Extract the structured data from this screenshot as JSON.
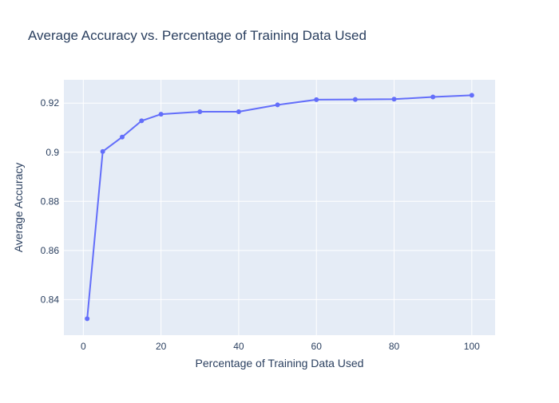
{
  "chart_data": {
    "type": "line",
    "title": "Average Accuracy vs. Percentage of Training Data Used",
    "xlabel": "Percentage of Training Data Used",
    "ylabel": "Average Accuracy",
    "xlim": [
      -5,
      106
    ],
    "ylim": [
      0.8255,
      0.9295
    ],
    "x_ticks": [
      0,
      20,
      40,
      60,
      80,
      100
    ],
    "x_tick_labels": [
      "0",
      "20",
      "40",
      "60",
      "80",
      "100"
    ],
    "y_ticks": [
      0.84,
      0.86,
      0.88,
      0.9,
      0.92
    ],
    "y_tick_labels": [
      "0.84",
      "0.86",
      "0.88",
      "0.9",
      "0.92"
    ],
    "grid": true,
    "series": [
      {
        "x": [
          1,
          5,
          10,
          15,
          20,
          30,
          40,
          50,
          60,
          70,
          80,
          90,
          100
        ],
        "y": [
          0.8322,
          0.9003,
          0.9062,
          0.9128,
          0.9155,
          0.9165,
          0.9165,
          0.9193,
          0.9214,
          0.9215,
          0.9216,
          0.9225,
          0.9232
        ]
      }
    ],
    "colors": {
      "line": "#636efa",
      "plot_background": "#e5ecf6",
      "grid": "#ffffff",
      "text": "#2a3f5f"
    }
  }
}
